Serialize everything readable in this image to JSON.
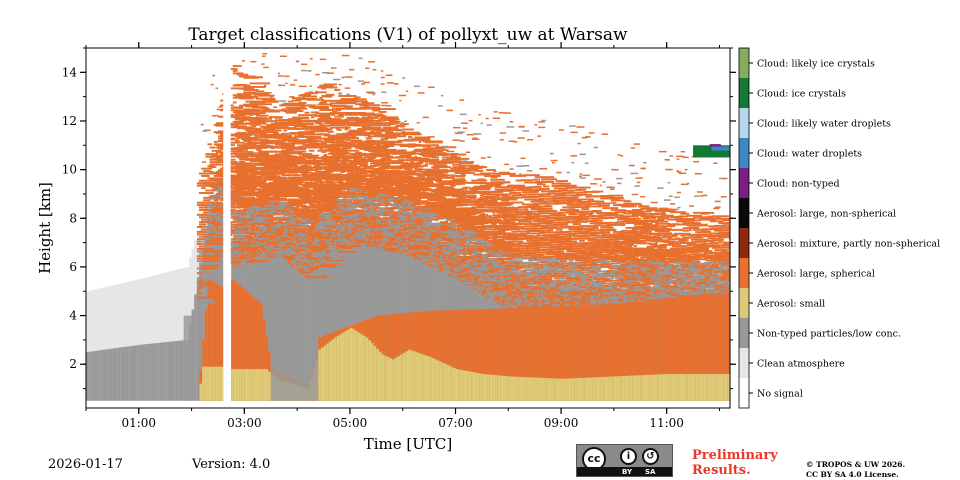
{
  "chart_data": {
    "type": "heatmap",
    "title": "Target classifications (V1) of pollyxt_uw at Warsaw",
    "xlabel": "Time [UTC]",
    "ylabel": "Height [km]",
    "xlim": [
      0,
      12.2
    ],
    "ylim": [
      0.2,
      15
    ],
    "x_ticks": [
      {
        "value": 1,
        "label": "01:00"
      },
      {
        "value": 3,
        "label": "03:00"
      },
      {
        "value": 5,
        "label": "05:00"
      },
      {
        "value": 7,
        "label": "07:00"
      },
      {
        "value": 9,
        "label": "09:00"
      },
      {
        "value": 11,
        "label": "11:00"
      }
    ],
    "y_ticks": [
      {
        "value": 2,
        "label": "2"
      },
      {
        "value": 4,
        "label": "4"
      },
      {
        "value": 6,
        "label": "6"
      },
      {
        "value": 8,
        "label": "8"
      },
      {
        "value": 10,
        "label": "10"
      },
      {
        "value": 12,
        "label": "12"
      },
      {
        "value": 14,
        "label": "14"
      }
    ],
    "colorbar_classes": [
      {
        "label": "No signal",
        "color": "#ffffff"
      },
      {
        "label": "Clean atmosphere",
        "color": "#e6e6e6"
      },
      {
        "label": "Non-typed particles/low conc.",
        "color": "#999999"
      },
      {
        "label": "Aerosol: small",
        "color": "#ddcb78"
      },
      {
        "label": "Aerosol: large, spherical",
        "color": "#e8702f"
      },
      {
        "label": "Aerosol: mixture, partly non-spherical",
        "color": "#8b2a0d"
      },
      {
        "label": "Aerosol: large, non-spherical",
        "color": "#0a0a0a"
      },
      {
        "label": "Cloud: non-typed",
        "color": "#7b1e82"
      },
      {
        "label": "Cloud: water droplets",
        "color": "#3c8ac4"
      },
      {
        "label": "Cloud: likely water droplets",
        "color": "#b4d6ee"
      },
      {
        "label": "Cloud: ice crystals",
        "color": "#157834"
      },
      {
        "label": "Cloud: likely ice crystals",
        "color": "#86ad5c"
      }
    ],
    "profile": {
      "signal_bottom_km": 0.5,
      "gap_hours": [
        2.6,
        2.74
      ],
      "small_aerosol_top_km": [
        [
          2.1,
          0.5
        ],
        [
          2.2,
          1.9
        ],
        [
          2.6,
          1.9
        ],
        [
          2.75,
          1.8
        ],
        [
          3.4,
          1.8
        ],
        [
          3.6,
          1.4
        ],
        [
          4.2,
          1.0
        ],
        [
          4.4,
          2.6
        ],
        [
          4.7,
          3.1
        ],
        [
          5.0,
          3.5
        ],
        [
          5.3,
          3.1
        ],
        [
          5.6,
          2.4
        ],
        [
          5.8,
          2.2
        ],
        [
          6.1,
          2.6
        ],
        [
          6.5,
          2.3
        ],
        [
          7.0,
          1.8
        ],
        [
          7.5,
          1.6
        ],
        [
          8.0,
          1.5
        ],
        [
          9.0,
          1.4
        ],
        [
          10.0,
          1.5
        ],
        [
          11.0,
          1.6
        ],
        [
          12.2,
          1.6
        ]
      ],
      "large_spherical_top_km": [
        [
          2.1,
          0.5
        ],
        [
          2.3,
          5.5
        ],
        [
          2.55,
          5.2
        ],
        [
          2.75,
          5.5
        ],
        [
          3.3,
          4.5
        ],
        [
          3.5,
          1.9
        ],
        [
          4.2,
          1.0
        ],
        [
          4.4,
          3.1
        ],
        [
          5.0,
          3.6
        ],
        [
          5.5,
          4.0
        ],
        [
          6.5,
          4.2
        ],
        [
          8.0,
          4.3
        ],
        [
          10.0,
          4.5
        ],
        [
          11.0,
          4.8
        ],
        [
          12.2,
          5.0
        ]
      ],
      "nontyped_top_km": [
        [
          0.0,
          2.5
        ],
        [
          1.0,
          2.8
        ],
        [
          1.9,
          3.0
        ],
        [
          2.3,
          8.0
        ],
        [
          2.6,
          8.5
        ],
        [
          2.75,
          7.0
        ],
        [
          3.6,
          7.5
        ],
        [
          4.2,
          6.5
        ],
        [
          5.0,
          8.0
        ],
        [
          6.0,
          7.5
        ],
        [
          7.0,
          6.5
        ],
        [
          8.0,
          5.2
        ],
        [
          9.5,
          5.0
        ],
        [
          12.2,
          5.0
        ]
      ],
      "clean_top_km": [
        [
          0.0,
          5.0
        ],
        [
          1.0,
          5.5
        ],
        [
          1.9,
          6.0
        ],
        [
          2.3,
          9.0
        ],
        [
          2.6,
          9.0
        ]
      ],
      "aerosol_plume_top_km": [
        [
          2.1,
          9.5
        ],
        [
          2.5,
          12.5
        ],
        [
          2.75,
          14.5
        ],
        [
          3.5,
          12.5
        ],
        [
          4.5,
          13.5
        ],
        [
          5.5,
          12.5
        ],
        [
          6.5,
          11.0
        ],
        [
          7.5,
          10.0
        ],
        [
          9.0,
          9.5
        ],
        [
          10.5,
          8.5
        ],
        [
          12.2,
          8.0
        ]
      ],
      "cloud_patch": {
        "hours": [
          11.5,
          12.2
        ],
        "height_km": [
          10.5,
          11.0
        ],
        "classes": [
          "Cloud: ice crystals",
          "Cloud: water droplets",
          "Cloud: non-typed"
        ]
      }
    }
  },
  "footer": {
    "date": "2026-01-17",
    "version": "Version: 4.0",
    "preliminary_line1": "Preliminary",
    "preliminary_line2": "Results.",
    "copyright_line1": "© TROPOS & UW 2026.",
    "copyright_line2": "CC BY SA 4.0 License.",
    "license_badge": {
      "cc": "cc",
      "by": "BY",
      "sa": "SA"
    }
  }
}
